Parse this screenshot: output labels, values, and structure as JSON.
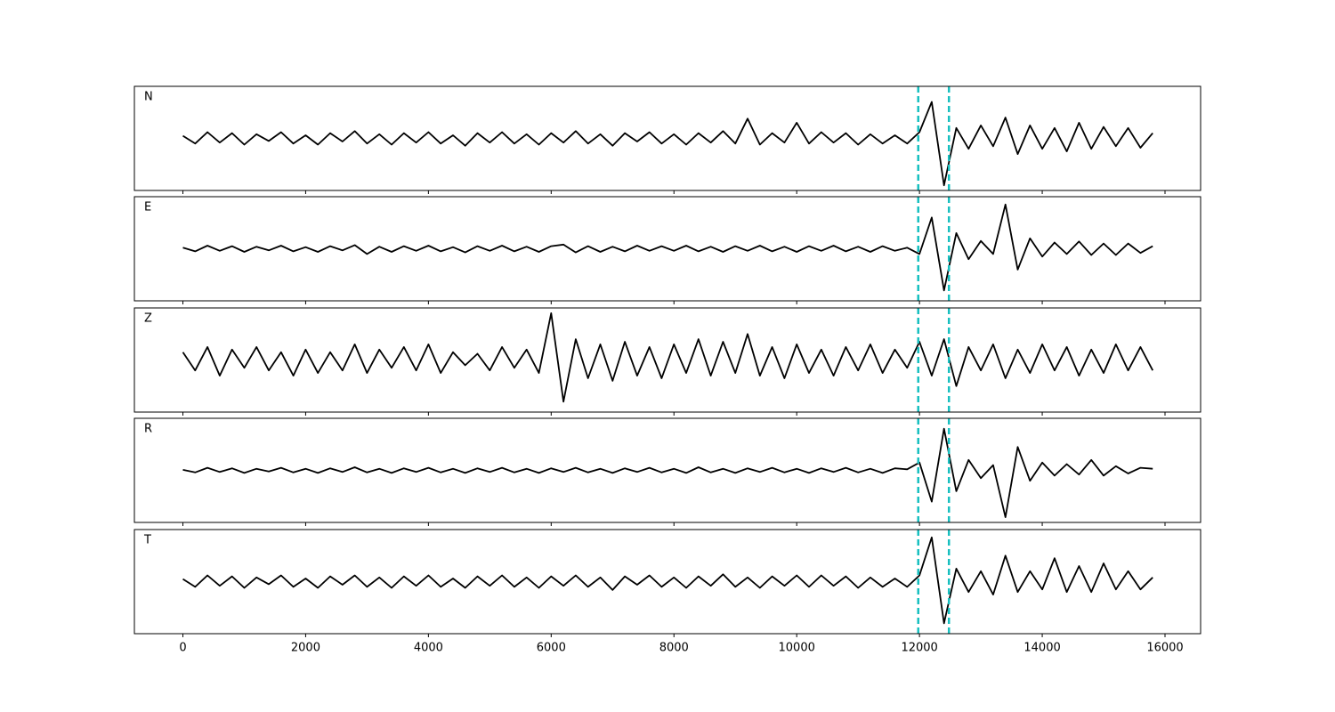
{
  "chart_data": {
    "type": "line",
    "x": [
      0,
      200,
      400,
      600,
      800,
      1000,
      1200,
      1400,
      1600,
      1800,
      2000,
      2200,
      2400,
      2600,
      2800,
      3000,
      3200,
      3400,
      3600,
      3800,
      4000,
      4200,
      4400,
      4600,
      4800,
      5000,
      5200,
      5400,
      5600,
      5800,
      6000,
      6200,
      6400,
      6600,
      6800,
      7000,
      7200,
      7400,
      7600,
      7800,
      8000,
      8200,
      8400,
      8600,
      8800,
      9000,
      9200,
      9400,
      9600,
      9800,
      10000,
      10200,
      10400,
      10600,
      10800,
      11000,
      11200,
      11400,
      11600,
      11800,
      12000,
      12200,
      12400,
      12600,
      12800,
      13000,
      13200,
      13400,
      13600,
      13800,
      14000,
      14200,
      14400,
      14600,
      14800,
      15000,
      15200,
      15400,
      15600,
      15800
    ],
    "series": [
      {
        "name": "N",
        "color": "#000000",
        "values": [
          0.05,
          -0.1,
          0.12,
          -0.08,
          0.1,
          -0.12,
          0.08,
          -0.05,
          0.12,
          -0.1,
          0.06,
          -0.12,
          0.1,
          -0.06,
          0.14,
          -0.1,
          0.08,
          -0.12,
          0.1,
          -0.08,
          0.12,
          -0.1,
          0.06,
          -0.14,
          0.1,
          -0.08,
          0.12,
          -0.1,
          0.08,
          -0.12,
          0.1,
          -0.08,
          0.14,
          -0.1,
          0.08,
          -0.14,
          0.1,
          -0.06,
          0.12,
          -0.1,
          0.08,
          -0.12,
          0.1,
          -0.08,
          0.14,
          -0.1,
          0.38,
          -0.12,
          0.1,
          -0.08,
          0.3,
          -0.1,
          0.12,
          -0.08,
          0.1,
          -0.12,
          0.08,
          -0.1,
          0.06,
          -0.1,
          0.12,
          0.7,
          -0.9,
          0.2,
          -0.2,
          0.25,
          -0.15,
          0.4,
          -0.3,
          0.25,
          -0.2,
          0.2,
          -0.25,
          0.3,
          -0.2,
          0.22,
          -0.15,
          0.2,
          -0.18,
          0.1
        ]
      },
      {
        "name": "E",
        "color": "#000000",
        "values": [
          0.02,
          -0.05,
          0.06,
          -0.04,
          0.05,
          -0.06,
          0.04,
          -0.03,
          0.06,
          -0.05,
          0.03,
          -0.06,
          0.05,
          -0.03,
          0.07,
          -0.1,
          0.04,
          -0.06,
          0.05,
          -0.04,
          0.06,
          -0.05,
          0.03,
          -0.07,
          0.05,
          -0.04,
          0.06,
          -0.05,
          0.04,
          -0.06,
          0.05,
          0.08,
          -0.07,
          0.05,
          -0.06,
          0.04,
          -0.05,
          0.06,
          -0.04,
          0.05,
          -0.04,
          0.06,
          -0.05,
          0.04,
          -0.06,
          0.05,
          -0.04,
          0.06,
          -0.05,
          0.04,
          -0.06,
          0.05,
          -0.04,
          0.06,
          -0.05,
          0.04,
          -0.06,
          0.05,
          -0.04,
          0.02,
          -0.1,
          0.6,
          -0.8,
          0.3,
          -0.2,
          0.15,
          -0.1,
          0.85,
          -0.4,
          0.2,
          -0.15,
          0.12,
          -0.1,
          0.14,
          -0.12,
          0.1,
          -0.12,
          0.1,
          -0.08,
          0.05
        ]
      },
      {
        "name": "Z",
        "color": "#000000",
        "values": [
          0.15,
          -0.2,
          0.25,
          -0.3,
          0.2,
          -0.15,
          0.25,
          -0.2,
          0.15,
          -0.3,
          0.2,
          -0.25,
          0.15,
          -0.2,
          0.3,
          -0.25,
          0.2,
          -0.15,
          0.25,
          -0.2,
          0.3,
          -0.25,
          0.15,
          -0.1,
          0.12,
          -0.2,
          0.25,
          -0.15,
          0.2,
          -0.25,
          0.9,
          -0.8,
          0.4,
          -0.35,
          0.3,
          -0.4,
          0.35,
          -0.3,
          0.25,
          -0.35,
          0.3,
          -0.25,
          0.4,
          -0.3,
          0.35,
          -0.25,
          0.5,
          -0.3,
          0.25,
          -0.35,
          0.3,
          -0.25,
          0.2,
          -0.3,
          0.25,
          -0.2,
          0.3,
          -0.25,
          0.2,
          -0.15,
          0.35,
          -0.3,
          0.4,
          -0.5,
          0.25,
          -0.2,
          0.3,
          -0.35,
          0.2,
          -0.25,
          0.3,
          -0.2,
          0.25,
          -0.3,
          0.2,
          -0.25,
          0.3,
          -0.2,
          0.25,
          -0.2
        ]
      },
      {
        "name": "R",
        "color": "#000000",
        "values": [
          0.01,
          -0.04,
          0.05,
          -0.03,
          0.04,
          -0.05,
          0.03,
          -0.02,
          0.05,
          -0.04,
          0.03,
          -0.05,
          0.04,
          -0.03,
          0.06,
          -0.04,
          0.03,
          -0.05,
          0.04,
          -0.03,
          0.05,
          -0.04,
          0.03,
          -0.05,
          0.04,
          -0.03,
          0.05,
          -0.04,
          0.03,
          -0.05,
          0.04,
          -0.03,
          0.05,
          -0.04,
          0.03,
          -0.05,
          0.04,
          -0.03,
          0.05,
          -0.04,
          0.03,
          -0.05,
          0.06,
          -0.04,
          0.03,
          -0.05,
          0.04,
          -0.03,
          0.05,
          -0.04,
          0.03,
          -0.05,
          0.04,
          -0.03,
          0.05,
          -0.04,
          0.03,
          -0.05,
          0.04,
          0.02,
          0.15,
          -0.6,
          0.8,
          -0.4,
          0.2,
          -0.15,
          0.1,
          -0.9,
          0.45,
          -0.2,
          0.15,
          -0.1,
          0.12,
          -0.08,
          0.2,
          -0.1,
          0.08,
          -0.06,
          0.05,
          0.03
        ]
      },
      {
        "name": "T",
        "color": "#000000",
        "values": [
          0.05,
          -0.1,
          0.12,
          -0.08,
          0.1,
          -0.12,
          0.08,
          -0.05,
          0.12,
          -0.1,
          0.06,
          -0.12,
          0.1,
          -0.06,
          0.12,
          -0.1,
          0.08,
          -0.12,
          0.1,
          -0.08,
          0.12,
          -0.1,
          0.06,
          -0.12,
          0.1,
          -0.08,
          0.12,
          -0.1,
          0.08,
          -0.12,
          0.1,
          -0.08,
          0.12,
          -0.1,
          0.08,
          -0.16,
          0.1,
          -0.06,
          0.12,
          -0.1,
          0.08,
          -0.12,
          0.1,
          -0.08,
          0.14,
          -0.1,
          0.08,
          -0.12,
          0.1,
          -0.08,
          0.12,
          -0.1,
          0.12,
          -0.08,
          0.1,
          -0.12,
          0.08,
          -0.1,
          0.06,
          -0.1,
          0.12,
          0.85,
          -0.8,
          0.25,
          -0.2,
          0.2,
          -0.25,
          0.5,
          -0.2,
          0.2,
          -0.15,
          0.45,
          -0.2,
          0.3,
          -0.2,
          0.35,
          -0.15,
          0.2,
          -0.15,
          0.08
        ]
      }
    ],
    "vlines": [
      11980,
      12480
    ],
    "vline_color": "#17bfbf",
    "xlim": [
      -790,
      16580
    ],
    "xticks": [
      0,
      2000,
      4000,
      6000,
      8000,
      10000,
      12000,
      14000,
      16000
    ],
    "ylim": [
      -1,
      1
    ]
  }
}
